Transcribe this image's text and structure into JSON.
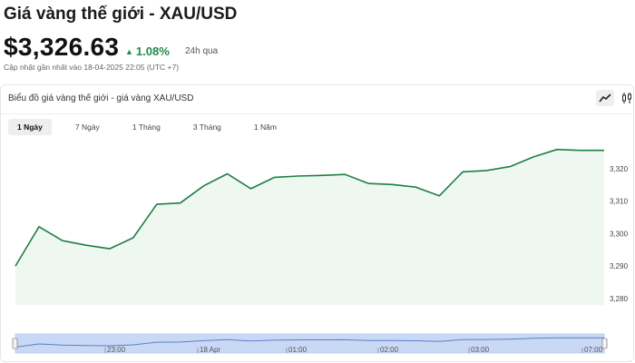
{
  "header": {
    "title": "Giá vàng thế giới - XAU/USD",
    "price": "$3,326.63",
    "change": "1.08%",
    "period": "24h qua",
    "updated": "Cập nhật gần nhất vào 18-04-2025 22:05 (UTC +7)"
  },
  "card": {
    "title": "Biểu đồ giá vàng thế giới - giá vàng XAU/USD",
    "tabs": [
      {
        "label": "1 Ngày",
        "active": true
      },
      {
        "label": "7 Ngày",
        "active": false
      },
      {
        "label": "1 Tháng",
        "active": false
      },
      {
        "label": "3 Tháng",
        "active": false
      },
      {
        "label": "1 Năm",
        "active": false
      }
    ]
  },
  "colors": {
    "line": "#1e7e45",
    "fill": "#eef7f0",
    "positive": "#1f8a4c",
    "navigator_fill": "#c9d9f5",
    "navigator_line": "#5b7fc7"
  },
  "icons": {
    "arrow": "triangle-up-icon",
    "line_tool": "line-chart-icon",
    "candle_tool": "candlestick-icon"
  },
  "chart_data": {
    "type": "area",
    "x": [
      0,
      1,
      2,
      3,
      4,
      5,
      6,
      7,
      8,
      9,
      10,
      11,
      12,
      13,
      14,
      15,
      16,
      17,
      18,
      19,
      20,
      21,
      22,
      23,
      24,
      25
    ],
    "values": [
      3290.0,
      3302.1,
      3297.8,
      3296.4,
      3295.3,
      3298.7,
      3309.0,
      3309.4,
      3314.7,
      3318.4,
      3313.8,
      3317.3,
      3317.7,
      3317.9,
      3318.2,
      3315.4,
      3315.1,
      3314.3,
      3311.6,
      3319.0,
      3319.4,
      3320.6,
      3323.6,
      3325.9,
      3325.6,
      3325.6
    ],
    "ylim": [
      3278,
      3330
    ],
    "yticks": [
      3280,
      3290,
      3300,
      3310,
      3320
    ],
    "ytick_labels": [
      "3,280",
      "3,290",
      "3,300",
      "3,310",
      "3,320"
    ],
    "navigator_labels": [
      "23:00",
      "18 Apr",
      "01:00",
      "02:00",
      "03:00",
      "07:00"
    ],
    "grid": false
  }
}
